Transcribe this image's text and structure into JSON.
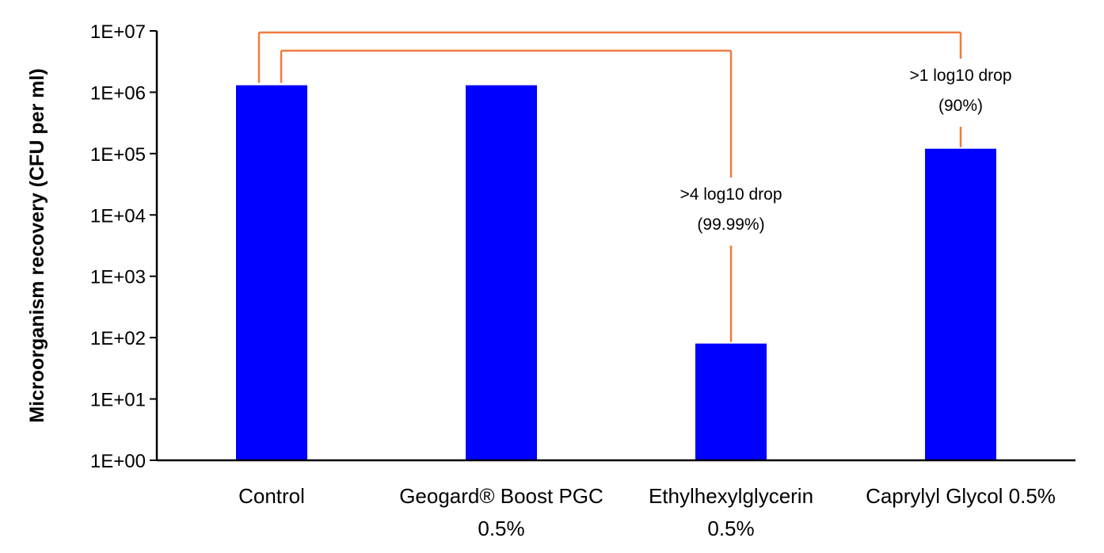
{
  "chart_data": {
    "type": "bar",
    "title": "",
    "xlabel": "",
    "ylabel": "Microorganism recovery (CFU per ml)",
    "yscale": "log",
    "ylim": [
      1,
      10000000
    ],
    "yticks": [
      1,
      10,
      100,
      1000,
      10000,
      100000,
      1000000,
      10000000
    ],
    "ytick_labels": [
      "1E+00",
      "1E+01",
      "1E+02",
      "1E+03",
      "1E+04",
      "1E+05",
      "1E+06",
      "1E+07"
    ],
    "categories": [
      [
        "Control"
      ],
      [
        "Geogard® Boost PGC",
        "0.5%"
      ],
      [
        "Ethylhexylglycerin",
        "0.5%"
      ],
      [
        "Caprylyl Glycol 0.5%"
      ]
    ],
    "values": [
      1300000,
      1300000,
      80,
      120000
    ],
    "bar_color": "#0000FF",
    "bracket_color": "#F07A3E",
    "grid": false,
    "legend": "none",
    "annotations": [
      {
        "from": 0,
        "to": 2,
        "lines": [
          ">4 log10 drop",
          "(99.99%)"
        ]
      },
      {
        "from": 0,
        "to": 3,
        "lines": [
          ">1 log10 drop",
          "(90%)"
        ]
      }
    ]
  }
}
